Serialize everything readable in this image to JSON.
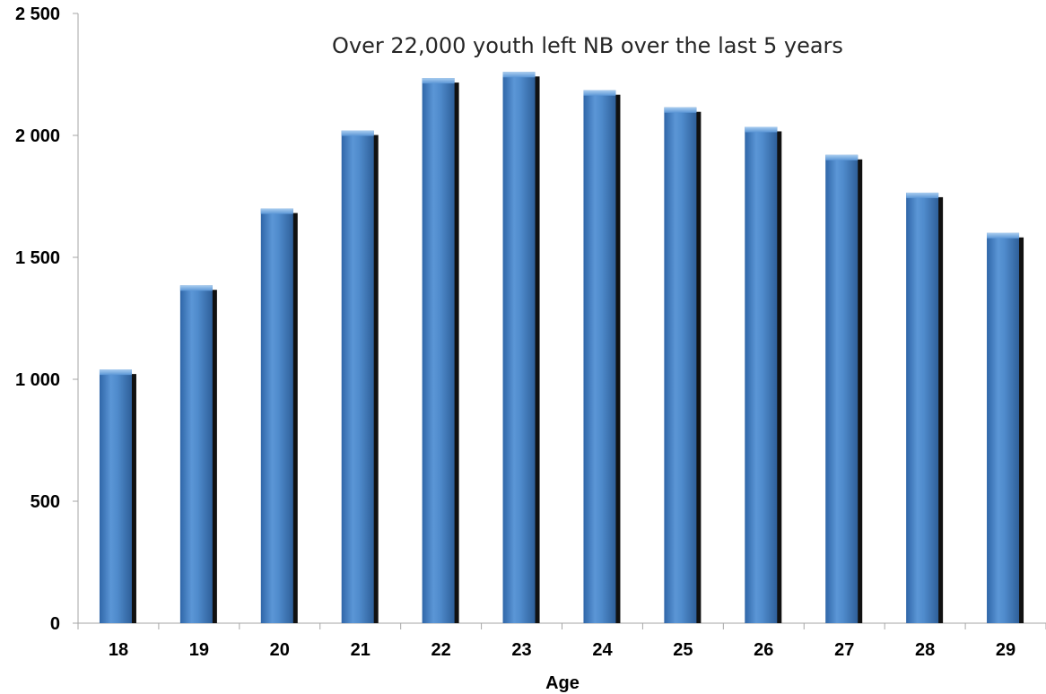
{
  "chart_data": {
    "type": "bar",
    "title": "Over 22,000 youth left NB over the last 5 years",
    "xlabel": "Age",
    "ylabel": "",
    "categories": [
      "18",
      "19",
      "20",
      "21",
      "22",
      "23",
      "24",
      "25",
      "26",
      "27",
      "28",
      "29"
    ],
    "values": [
      1040,
      1385,
      1700,
      2020,
      2235,
      2260,
      2185,
      2115,
      2035,
      1920,
      1765,
      1600
    ],
    "ylim": [
      0,
      2500
    ],
    "yticks": [
      0,
      500,
      1000,
      1500,
      2000,
      2500
    ],
    "ytick_labels": [
      "0",
      "500",
      "1 000",
      "1 500",
      "2 000",
      "2 500"
    ],
    "grid": false,
    "legend": "none",
    "colors": {
      "bar": "#4a86c8",
      "bar_light": "#7fb0e3",
      "bar_dark": "#2e5f99",
      "bar_shadow": "#111111",
      "axis": "#a6a6a6"
    }
  }
}
